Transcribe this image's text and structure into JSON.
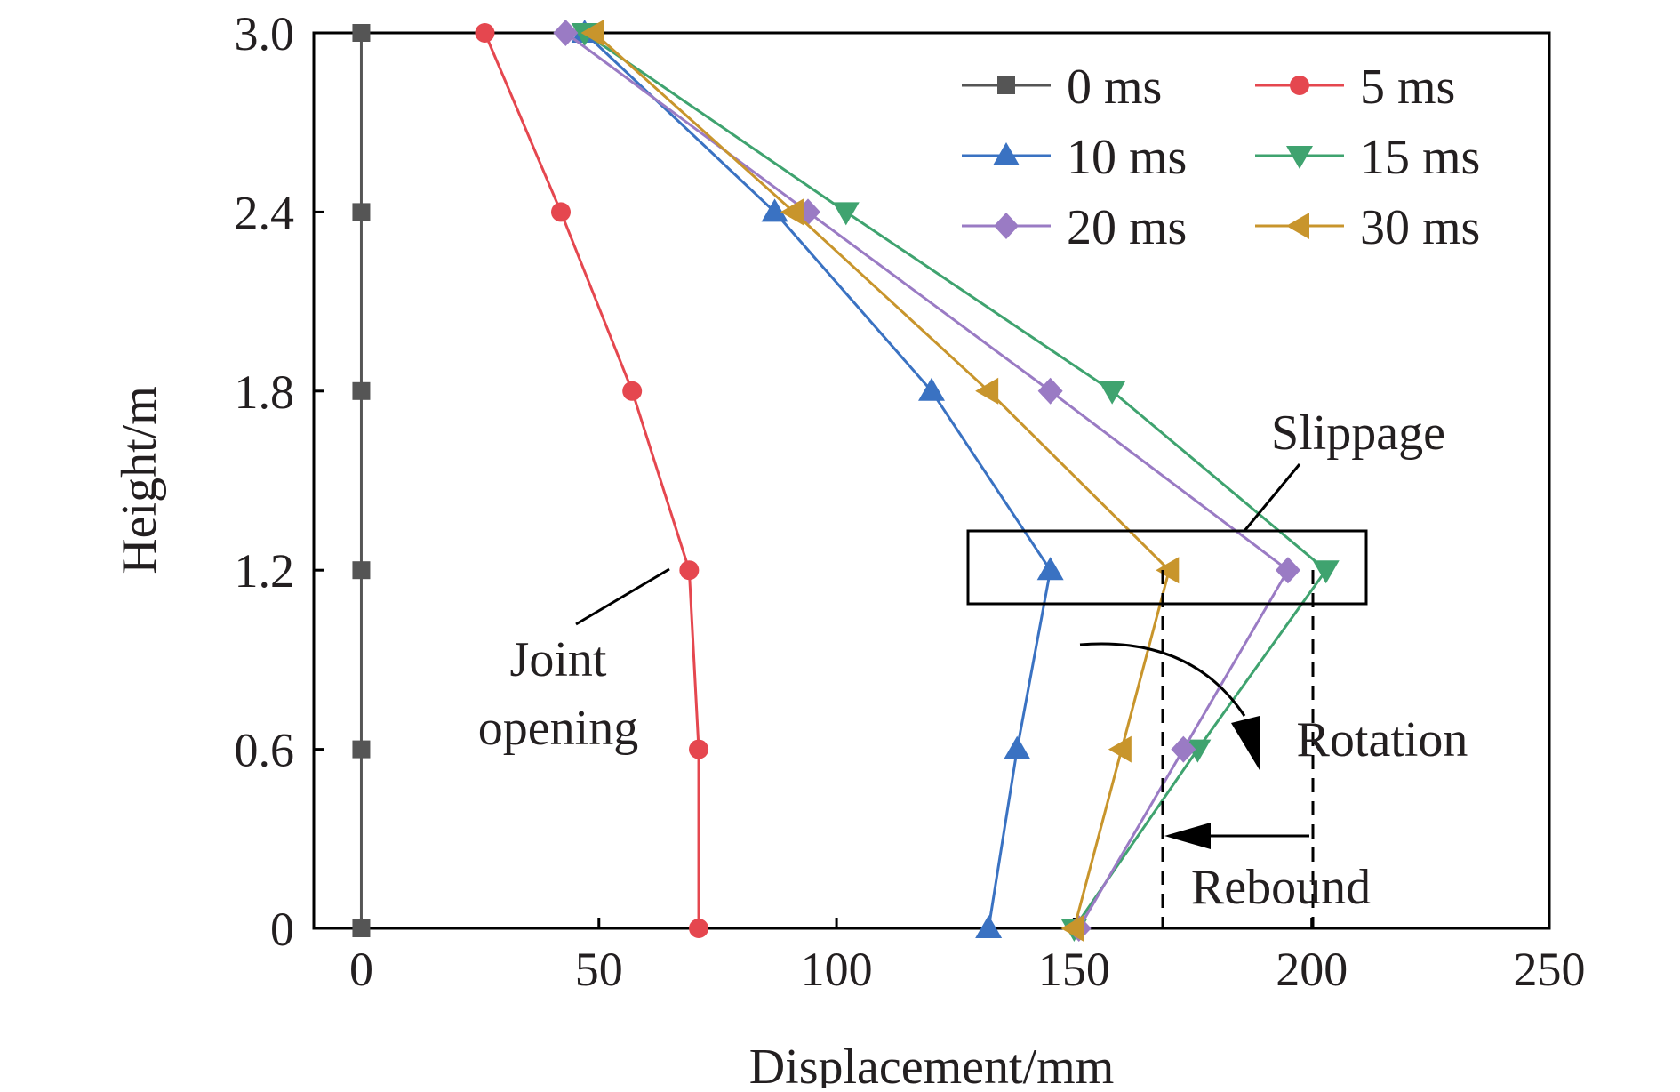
{
  "chart_data": {
    "type": "line",
    "xlabel": "Displacement/mm",
    "ylabel": "Height/m",
    "xlim": [
      -10,
      250
    ],
    "ylim": [
      0,
      3.0
    ],
    "x_ticks": [
      0,
      50,
      100,
      150,
      200,
      250
    ],
    "x_tick_labels": [
      "0",
      "50",
      "100",
      "150",
      "200",
      "250"
    ],
    "y_ticks": [
      0,
      0.6,
      1.2,
      1.8,
      2.4,
      3.0
    ],
    "y_tick_labels": [
      "0",
      "0.6",
      "1.2",
      "1.8",
      "2.4",
      "3.0"
    ],
    "grid": false,
    "legend_position": "top-right",
    "series": [
      {
        "name": "0 ms",
        "color": "#555555",
        "marker": "square",
        "x": [
          0,
          0,
          0,
          0,
          0,
          0
        ],
        "y": [
          0,
          0.6,
          1.2,
          1.8,
          2.4,
          3.0
        ]
      },
      {
        "name": "5 ms",
        "color": "#e5474f",
        "marker": "circle",
        "x": [
          71,
          71,
          69,
          57,
          42,
          26
        ],
        "y": [
          0,
          0.6,
          1.2,
          1.8,
          2.4,
          3.0
        ]
      },
      {
        "name": "10 ms",
        "color": "#3a72c2",
        "marker": "triangle-up",
        "x": [
          132,
          138,
          145,
          120,
          87,
          47
        ],
        "y": [
          0,
          0.6,
          1.2,
          1.8,
          2.4,
          3.0
        ]
      },
      {
        "name": "15 ms",
        "color": "#3fa36f",
        "marker": "triangle-down",
        "x": [
          150,
          176,
          203,
          158,
          102,
          47
        ],
        "y": [
          0,
          0.6,
          1.2,
          1.8,
          2.4,
          3.0
        ]
      },
      {
        "name": "20 ms",
        "color": "#9a7bc4",
        "marker": "diamond",
        "x": [
          151,
          173,
          195,
          145,
          94,
          43
        ],
        "y": [
          0,
          0.6,
          1.2,
          1.8,
          2.4,
          3.0
        ]
      },
      {
        "name": "30 ms",
        "color": "#c8952c",
        "marker": "triangle-left",
        "x": [
          150,
          160,
          170,
          132,
          91,
          49
        ],
        "y": [
          0,
          0.6,
          1.2,
          1.8,
          2.4,
          3.0
        ]
      }
    ],
    "annotations": [
      {
        "text": "Joint",
        "x": 41,
        "y": 0.88
      },
      {
        "text": "opening",
        "x": 41,
        "y": 0.65
      },
      {
        "text": "Slippage",
        "x": 210,
        "y": 1.65
      },
      {
        "text": "Rotation",
        "x": 214,
        "y": 0.6
      },
      {
        "text": "Rebound",
        "x": 194,
        "y": 0.12
      }
    ]
  }
}
